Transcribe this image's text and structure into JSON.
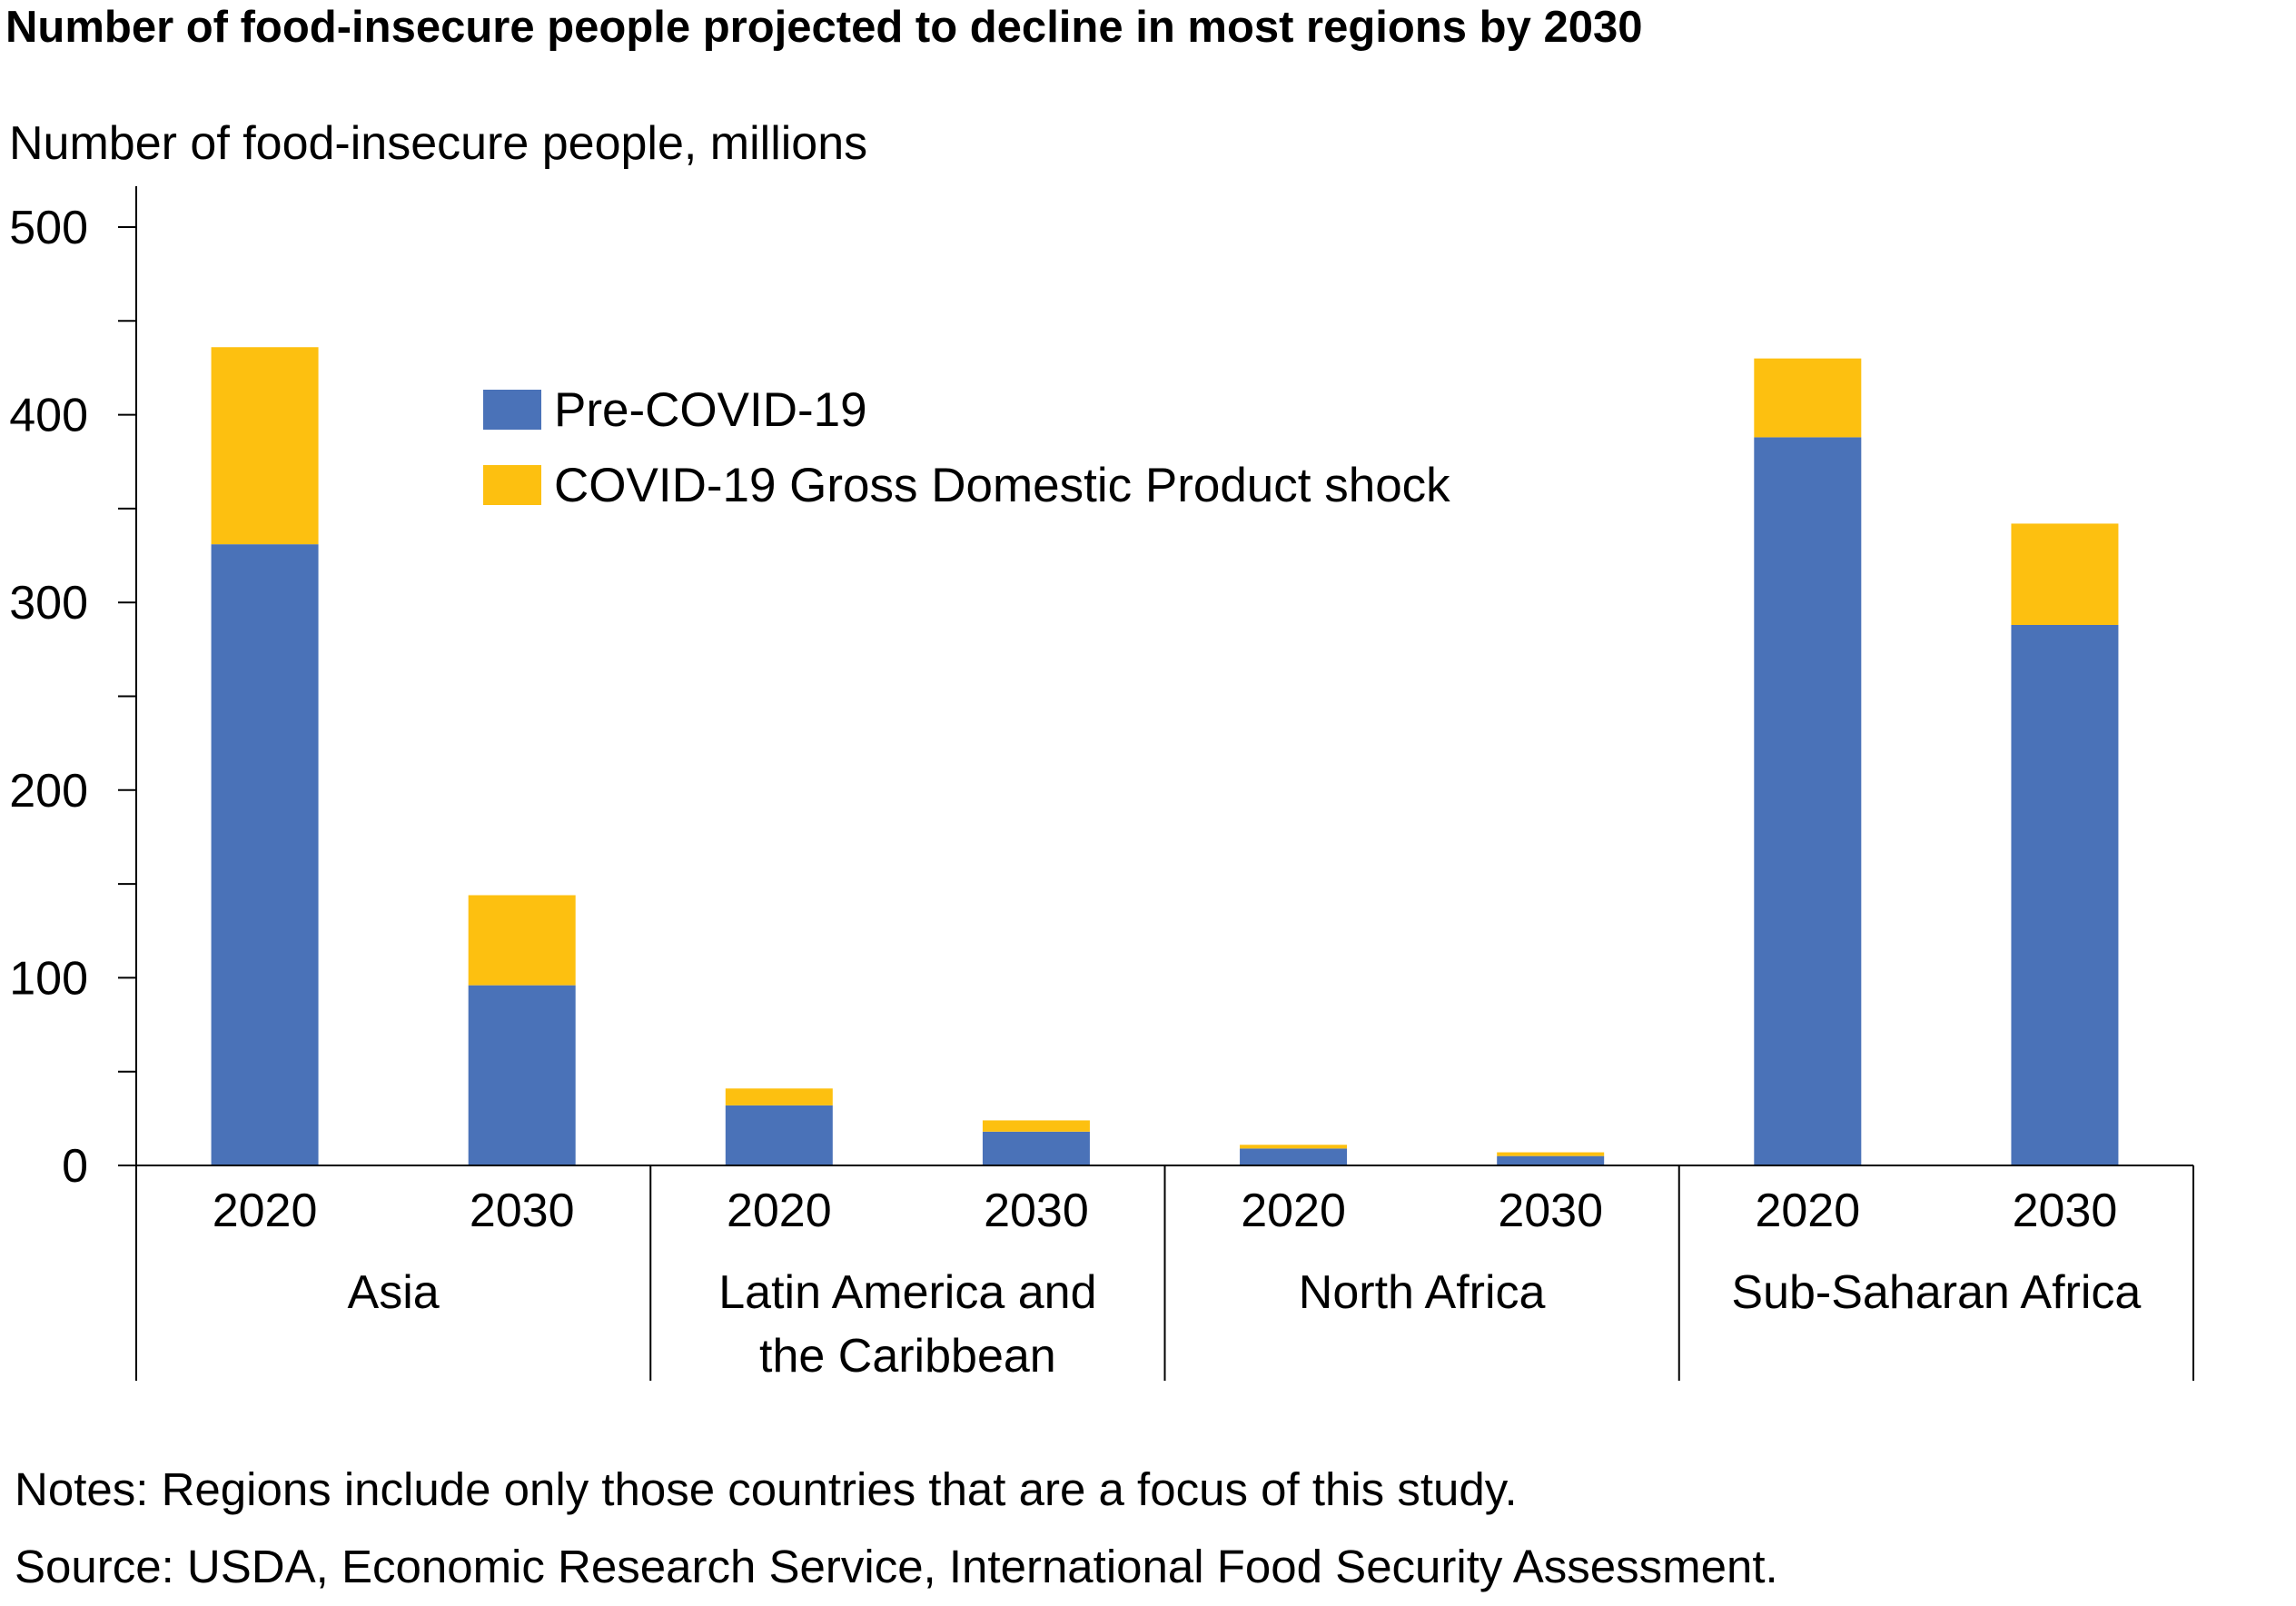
{
  "title": "Number of food-insecure people projected to decline in most regions by 2030",
  "notes": "Notes: Regions include only those countries that are a focus of this study.",
  "source": "Source: USDA, Economic Research Service, International Food Security Assessment.",
  "chart_data": {
    "type": "bar",
    "stacked": true,
    "ylabel": "Number of food-insecure people, millions",
    "ylim": [
      0,
      500
    ],
    "yticks": [
      0,
      100,
      200,
      300,
      400,
      500
    ],
    "groups": [
      {
        "label": "Asia",
        "categories": [
          "2020",
          "2030"
        ]
      },
      {
        "label": "Latin America and the Caribbean",
        "label_lines": [
          "Latin America and",
          "the Caribbean"
        ],
        "categories": [
          "2020",
          "2030"
        ]
      },
      {
        "label": "North Africa",
        "categories": [
          "2020",
          "2030"
        ]
      },
      {
        "label": "Sub-Saharan Africa",
        "categories": [
          "2020",
          "2030"
        ]
      }
    ],
    "series": [
      {
        "name": "Pre-COVID-19",
        "color": "#4a72b8",
        "values": [
          331,
          96,
          32,
          18,
          9,
          5,
          388,
          288
        ]
      },
      {
        "name": "COVID-19 Gross Domestic Product shock",
        "color": "#fdc010",
        "values": [
          105,
          48,
          9,
          6,
          2,
          2,
          42,
          54
        ]
      }
    ],
    "legend_position": "top-left",
    "grid": false
  }
}
